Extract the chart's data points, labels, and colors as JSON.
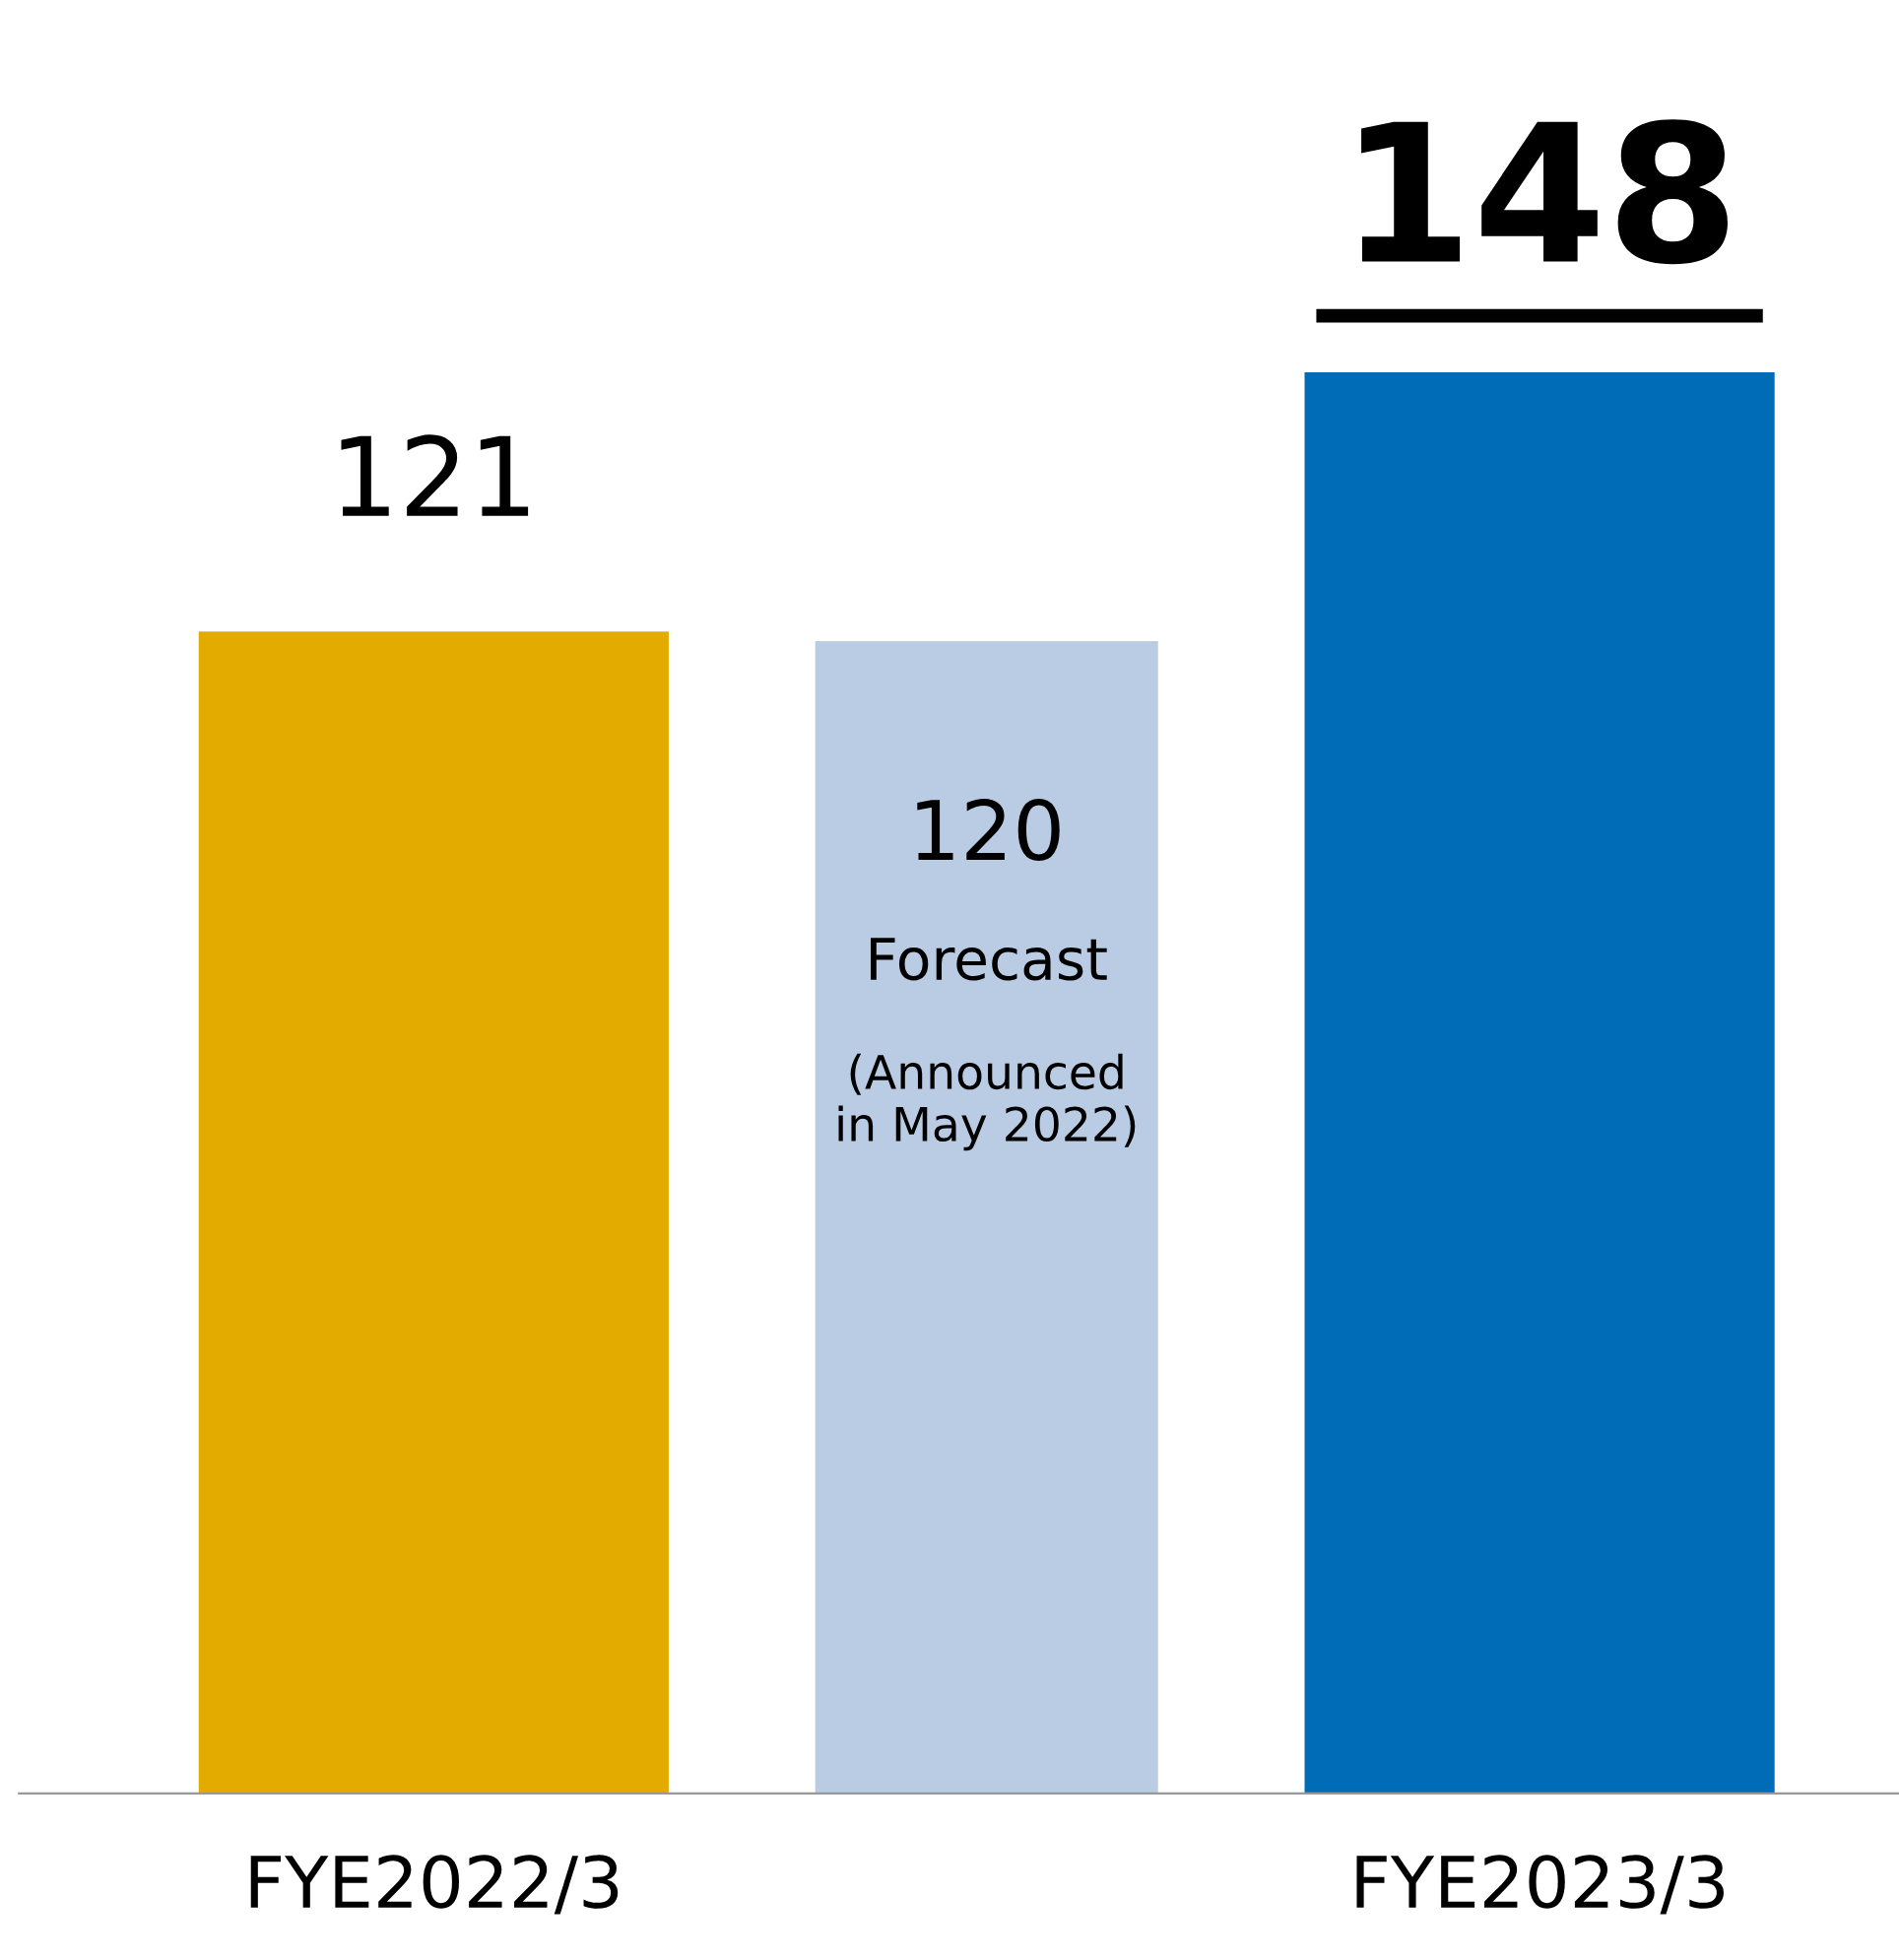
{
  "chart_data": {
    "type": "bar",
    "categories": [
      "FYE2022/3",
      null,
      "FYE2023/3"
    ],
    "values": [
      121,
      120,
      148
    ],
    "colors": [
      "#e3aa00",
      "#b9cce4",
      "#006cb7"
    ],
    "data_labels": true,
    "annotations": [
      "Forecast",
      "(Announced\nin May 2022)"
    ]
  }
}
